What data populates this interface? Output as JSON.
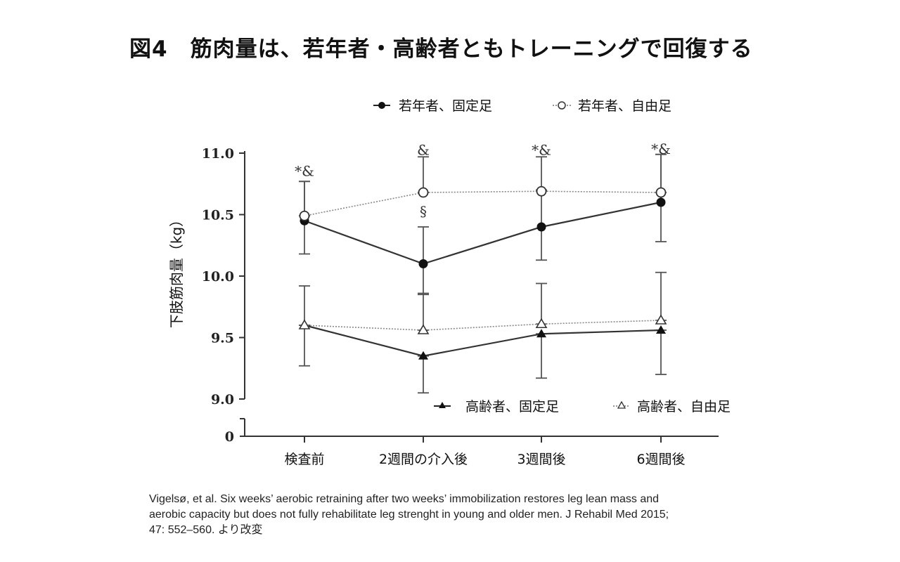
{
  "title": "図4　筋肉量は、若年者・高齢者ともトレーニングで回復する",
  "citation": {
    "line1": "Vigelsø, et al. Six weeks’ aerobic retraining after two weeks’ immobilization restores leg lean mass and",
    "line2": "aerobic capacity but does not fully rehabilitate leg strenght in young and older men. J Rehabil Med 2015;",
    "line3": "47: 552–560.  より改変"
  },
  "chart_data": {
    "type": "line",
    "ylabel": "下肢筋肉量（kg）",
    "xlabel": "",
    "categories": [
      "検査前",
      "2週間の介入後",
      "3週間後",
      "6週間後"
    ],
    "ylim": [
      9.0,
      11.0
    ],
    "yticks": [
      {
        "value": 11.0,
        "label": "11.0"
      },
      {
        "value": 10.5,
        "label": "10.5"
      },
      {
        "value": 10.0,
        "label": "10.0"
      },
      {
        "value": 9.5,
        "label": "9.5"
      },
      {
        "value": 9.0,
        "label": "9.0"
      }
    ],
    "broken_axis_zero_label": "0",
    "grid": false,
    "series": [
      {
        "name": "若年者、固定足",
        "marker": "filled-circle",
        "line": "solid",
        "values": [
          10.45,
          10.1,
          10.4,
          10.6
        ],
        "err_low": [
          10.18,
          9.85,
          10.13,
          10.28
        ],
        "err_high": [
          10.77,
          10.4,
          10.7,
          10.99
        ]
      },
      {
        "name": "若年者、自由足",
        "marker": "open-circle",
        "line": "dotted",
        "values": [
          10.49,
          10.68,
          10.69,
          10.68
        ],
        "err_low": [
          10.49,
          10.68,
          10.69,
          10.68
        ],
        "err_high": [
          10.77,
          10.97,
          10.97,
          10.99
        ]
      },
      {
        "name": "高齢者、固定足",
        "marker": "filled-triangle",
        "line": "solid",
        "values": [
          9.6,
          9.35,
          9.53,
          9.56
        ],
        "err_low": [
          9.27,
          9.05,
          9.17,
          9.2
        ],
        "err_high": [
          9.6,
          9.35,
          9.53,
          9.56
        ]
      },
      {
        "name": "高齢者、自由足",
        "marker": "open-triangle",
        "line": "dotted",
        "values": [
          9.6,
          9.56,
          9.61,
          9.64
        ],
        "err_low": [
          9.6,
          9.56,
          9.61,
          9.64
        ],
        "err_high": [
          9.92,
          9.86,
          9.94,
          10.03
        ]
      }
    ],
    "annotations": [
      {
        "category": "検査前",
        "text": "*&",
        "y": 10.85
      },
      {
        "category": "2週間の介入後",
        "text": "&",
        "y": 11.02
      },
      {
        "category": "2週間の介入後",
        "text": "§",
        "y": 10.52
      },
      {
        "category": "3週間後",
        "text": "*&",
        "y": 11.02
      },
      {
        "category": "6週間後",
        "text": "*&",
        "y": 11.03
      }
    ],
    "legend_placement": "top (young) and bottom-right (older)"
  }
}
